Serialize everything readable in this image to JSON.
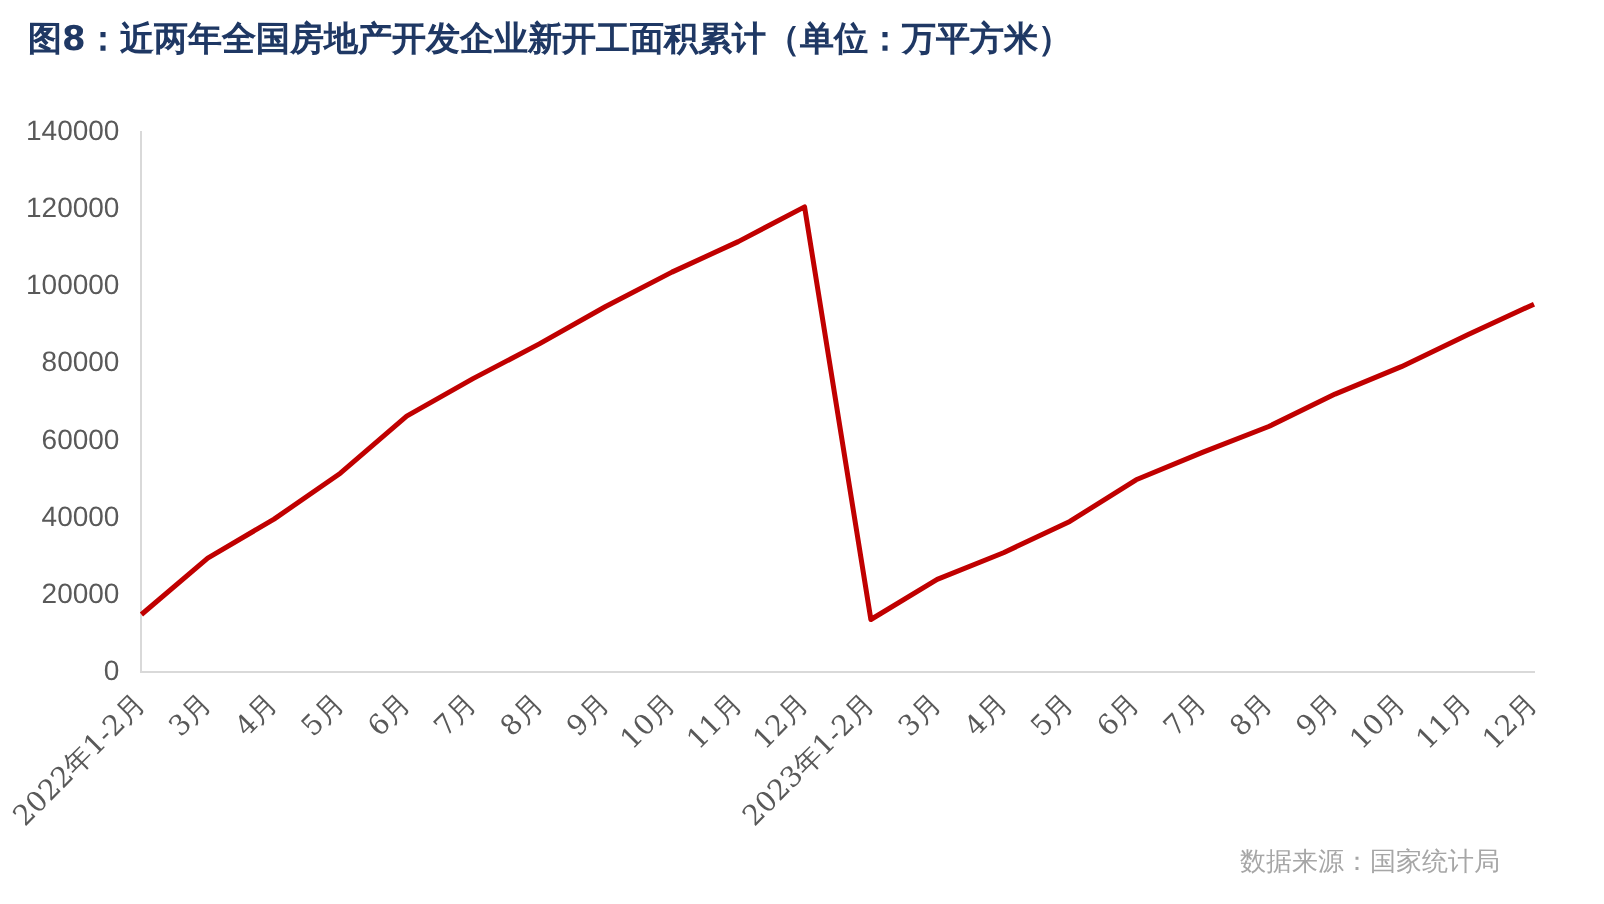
{
  "chart_data": {
    "type": "line",
    "title": "图8：近两年全国房地产开发企业新开工面积累计（单位：万平方米）",
    "categories": [
      "2022年1-2月",
      "3月",
      "4月",
      "5月",
      "6月",
      "7月",
      "8月",
      "9月",
      "10月",
      "11月",
      "12月",
      "2023年1-2月",
      "3月",
      "4月",
      "5月",
      "6月",
      "7月",
      "8月",
      "9月",
      "10月",
      "11月",
      "12月"
    ],
    "series": [
      {
        "color": "#c00000",
        "values": [
          15000,
          29600,
          39700,
          51600,
          66400,
          76100,
          85100,
          94800,
          103700,
          111600,
          120600,
          13700,
          24100,
          31000,
          39100,
          49900,
          57000,
          63700,
          72100,
          79200,
          87500,
          95400
        ]
      }
    ],
    "ylim": [
      0,
      140000
    ],
    "yticks": [
      0,
      20000,
      40000,
      60000,
      80000,
      100000,
      120000,
      140000
    ],
    "grid": false,
    "legend": false,
    "marker": "none",
    "line_style": "solid",
    "annotations": [
      "数据来源：国家统计局"
    ]
  }
}
